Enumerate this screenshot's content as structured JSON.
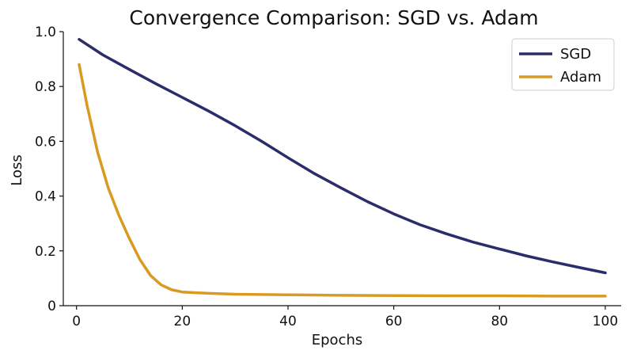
{
  "chart_data": {
    "type": "line",
    "title": "Convergence Comparison: SGD vs. Adam",
    "xlabel": "Epochs",
    "ylabel": "Loss",
    "xlim": [
      -2.5,
      103
    ],
    "ylim": [
      0,
      1.0
    ],
    "xticks": [
      "0",
      "20",
      "40",
      "60",
      "80",
      "100"
    ],
    "yticks": [
      "0",
      "0.2",
      "0.4",
      "0.6",
      "0.8",
      "1.0"
    ],
    "grid": false,
    "legend_position": "top-right",
    "series": [
      {
        "name": "SGD",
        "color": "#2b2d6b",
        "x": [
          0.5,
          5,
          10,
          15,
          20,
          25,
          30,
          35,
          40,
          45,
          50,
          55,
          60,
          65,
          70,
          75,
          80,
          85,
          90,
          95,
          100
        ],
        "y": [
          0.972,
          0.915,
          0.862,
          0.81,
          0.76,
          0.71,
          0.657,
          0.6,
          0.54,
          0.482,
          0.43,
          0.38,
          0.335,
          0.295,
          0.262,
          0.232,
          0.207,
          0.182,
          0.16,
          0.14,
          0.12
        ]
      },
      {
        "name": "Adam",
        "color": "#d99a22",
        "x": [
          0.5,
          2,
          4,
          6,
          8,
          10,
          12,
          14,
          16,
          18,
          20,
          25,
          30,
          40,
          50,
          60,
          70,
          80,
          90,
          100
        ],
        "y": [
          0.88,
          0.73,
          0.56,
          0.43,
          0.33,
          0.245,
          0.168,
          0.11,
          0.076,
          0.058,
          0.05,
          0.045,
          0.042,
          0.04,
          0.038,
          0.037,
          0.036,
          0.036,
          0.035,
          0.035
        ]
      }
    ]
  }
}
